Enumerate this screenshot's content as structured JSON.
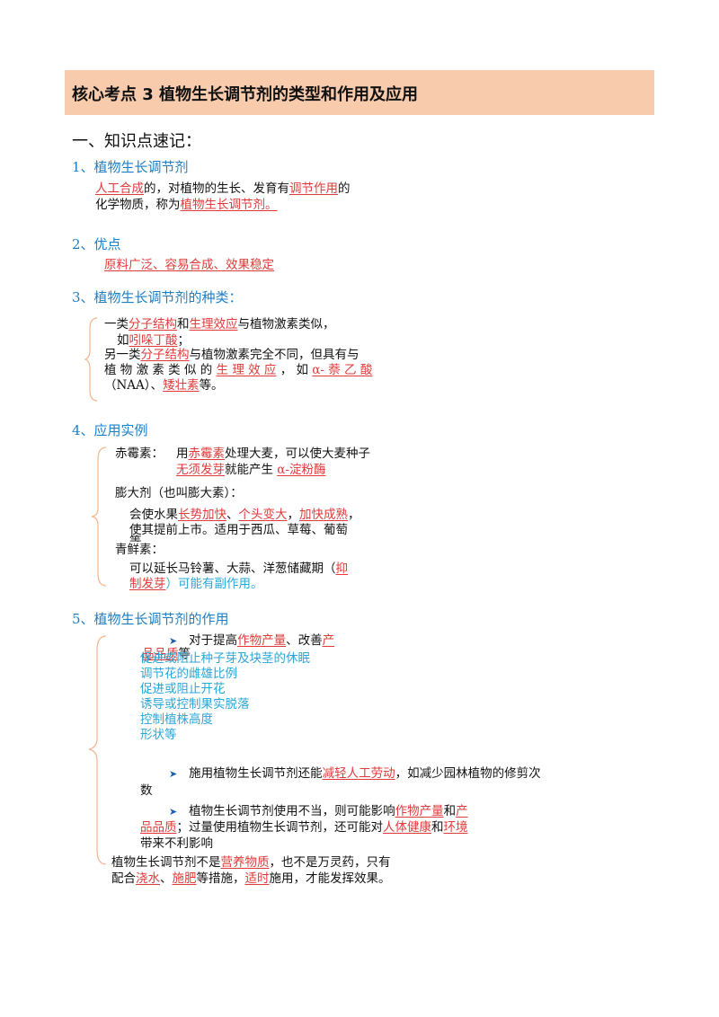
{
  "header": {
    "title": "核心考点 3  植物生长调节剂的类型和作用及应用"
  },
  "section_title": "一、知识点速记：",
  "s1": {
    "title": "1、植物生长调节剂",
    "line1": [
      "人工合成",
      "的，对植物的生长、发育有",
      "调节作用",
      "的"
    ],
    "line2": [
      "化学物质，称为",
      "植物生长调节剂。"
    ]
  },
  "s2": {
    "title": "2、优点",
    "text": "原料广泛、容易合成、效果稳定"
  },
  "s3": {
    "title": "3、植物生长调节剂的种类：",
    "l1": [
      "一类",
      "分子结构",
      "和",
      "生理效应",
      "与植物激素类似，"
    ],
    "l2": [
      "如",
      "吲哚丁酸",
      "；"
    ],
    "l3": [
      "另一类",
      "分子结构",
      "与植物激素完全不同，但具有与"
    ],
    "l4": [
      "植 物 激 素 类 似 的 ",
      "生 理 效 应",
      " ， 如 ",
      "α- 萘 乙 酸"
    ],
    "l5": [
      "（NAA）、",
      "矮壮素",
      "等。"
    ]
  },
  "s4": {
    "title": "4、应用实例",
    "gib_label": "赤霉素：",
    "gib1": [
      "用",
      "赤霉素",
      "处理大麦，可以使大麦种子"
    ],
    "gib2": [
      "无须发芽",
      "就能产生 ",
      "α-淀粉酶"
    ],
    "swell_label": "膨大剂（也叫膨大素）：",
    "swell1": [
      "会使水果",
      "长势加快",
      "、",
      "个头变大",
      "，",
      "加快成熟",
      "，"
    ],
    "swell2": "使其提前上市。适用于西瓜、草莓、葡萄",
    "swell3": "等",
    "fresh_label": "青鲜素：",
    "fresh1": [
      "可以延长马铃薯、大蒜、洋葱储藏期（",
      "抑"
    ],
    "fresh2": [
      "制发芽",
      "）可能有副作用。"
    ]
  },
  "s5": {
    "title": "5、植物生长调节剂的作用",
    "p1": [
      "对于提高",
      "作物产量",
      "、改善",
      "产"
    ],
    "p1b": [
      "品品质",
      "等"
    ],
    "cyan": [
      "促进或阻止种子芽及块茎的休眠",
      "调节花的雌雄比例",
      "促进或阻止开花",
      "诱导或控制果实脱落",
      "控制植株高度",
      "形状等"
    ],
    "p2": [
      "施用植物生长调节剂还能",
      "减轻人工劳动",
      "，如减少园林植物的修剪次"
    ],
    "p2b": "数",
    "p3": [
      "植物生长调节剂使用不当，则可能影响",
      "作物产量",
      "和",
      "产"
    ],
    "p3b": [
      "品品质",
      "；过量使用植物生长调节剂，还可能对",
      "人体健康",
      "和",
      "环境"
    ],
    "p3c": "带来不利影响",
    "p4": [
      "植物生长调节剂不是",
      "营养物质",
      "，也不是万灵药，只有"
    ],
    "p5": [
      "配合",
      "浇水",
      "、",
      "施肥",
      "等措施，",
      "适时",
      "施用，才能发挥效果。"
    ]
  }
}
